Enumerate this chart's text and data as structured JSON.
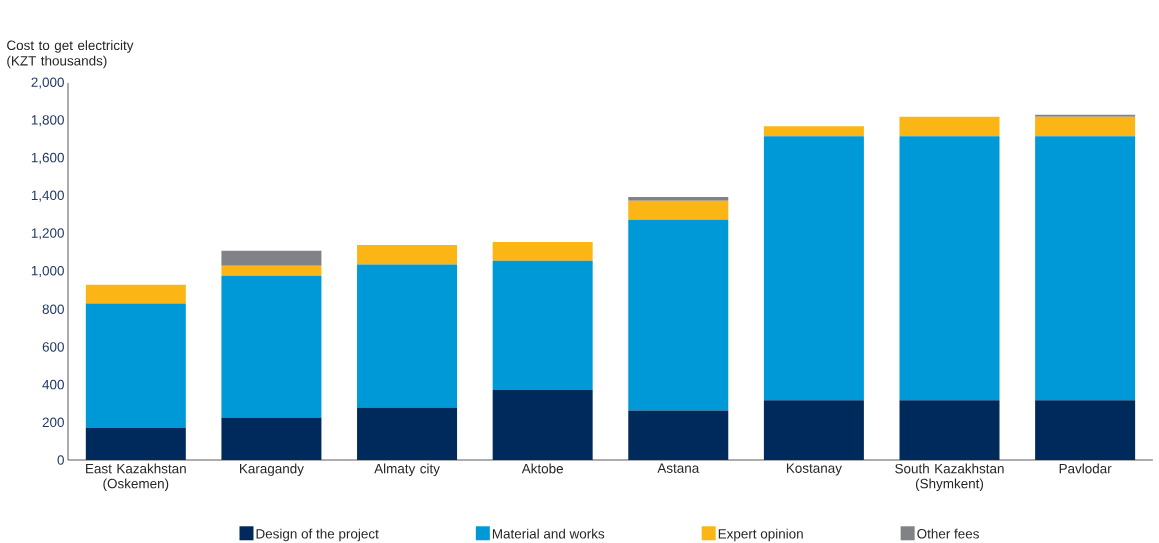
{
  "chart_data": {
    "type": "bar",
    "stacked": true,
    "ylabel": "Cost to get electricity (KZT thousands)",
    "categories": [
      "East Kazakhstan (Oskemen)",
      "Karagandy",
      "Almaty city",
      "Aktobe",
      "Astana",
      "Kostanay",
      "South Kazakhstan (Shymkent)",
      "Pavlodar"
    ],
    "series": [
      {
        "name": "Design of the project",
        "color": "#002a5c",
        "values": [
          170,
          225,
          278,
          372,
          262,
          317,
          317,
          317
        ]
      },
      {
        "name": "Material and works",
        "color": "#0099d8",
        "values": [
          660,
          753,
          759,
          685,
          1013,
          1401,
          1401,
          1401
        ]
      },
      {
        "name": "Expert opinion",
        "color": "#fbb515",
        "values": [
          100,
          52,
          103,
          99,
          100,
          52,
          103,
          103
        ]
      },
      {
        "name": "Other fees",
        "color": "#808285",
        "values": [
          0,
          80,
          0,
          0,
          20,
          0,
          0,
          10
        ]
      }
    ],
    "ylim": [
      0,
      2000
    ],
    "yticks": [
      0,
      200,
      400,
      600,
      800,
      {
        "value": 1000,
        "label": "1,000"
      },
      {
        "value": 1200,
        "label": "1,200"
      },
      {
        "value": 1400,
        "label": "1,400"
      },
      {
        "value": 1600,
        "label": "1,600"
      },
      {
        "value": 1800,
        "label": "1,800"
      },
      {
        "value": 2000,
        "label": "2,000"
      }
    ],
    "grid": false,
    "legend": "bottom"
  }
}
